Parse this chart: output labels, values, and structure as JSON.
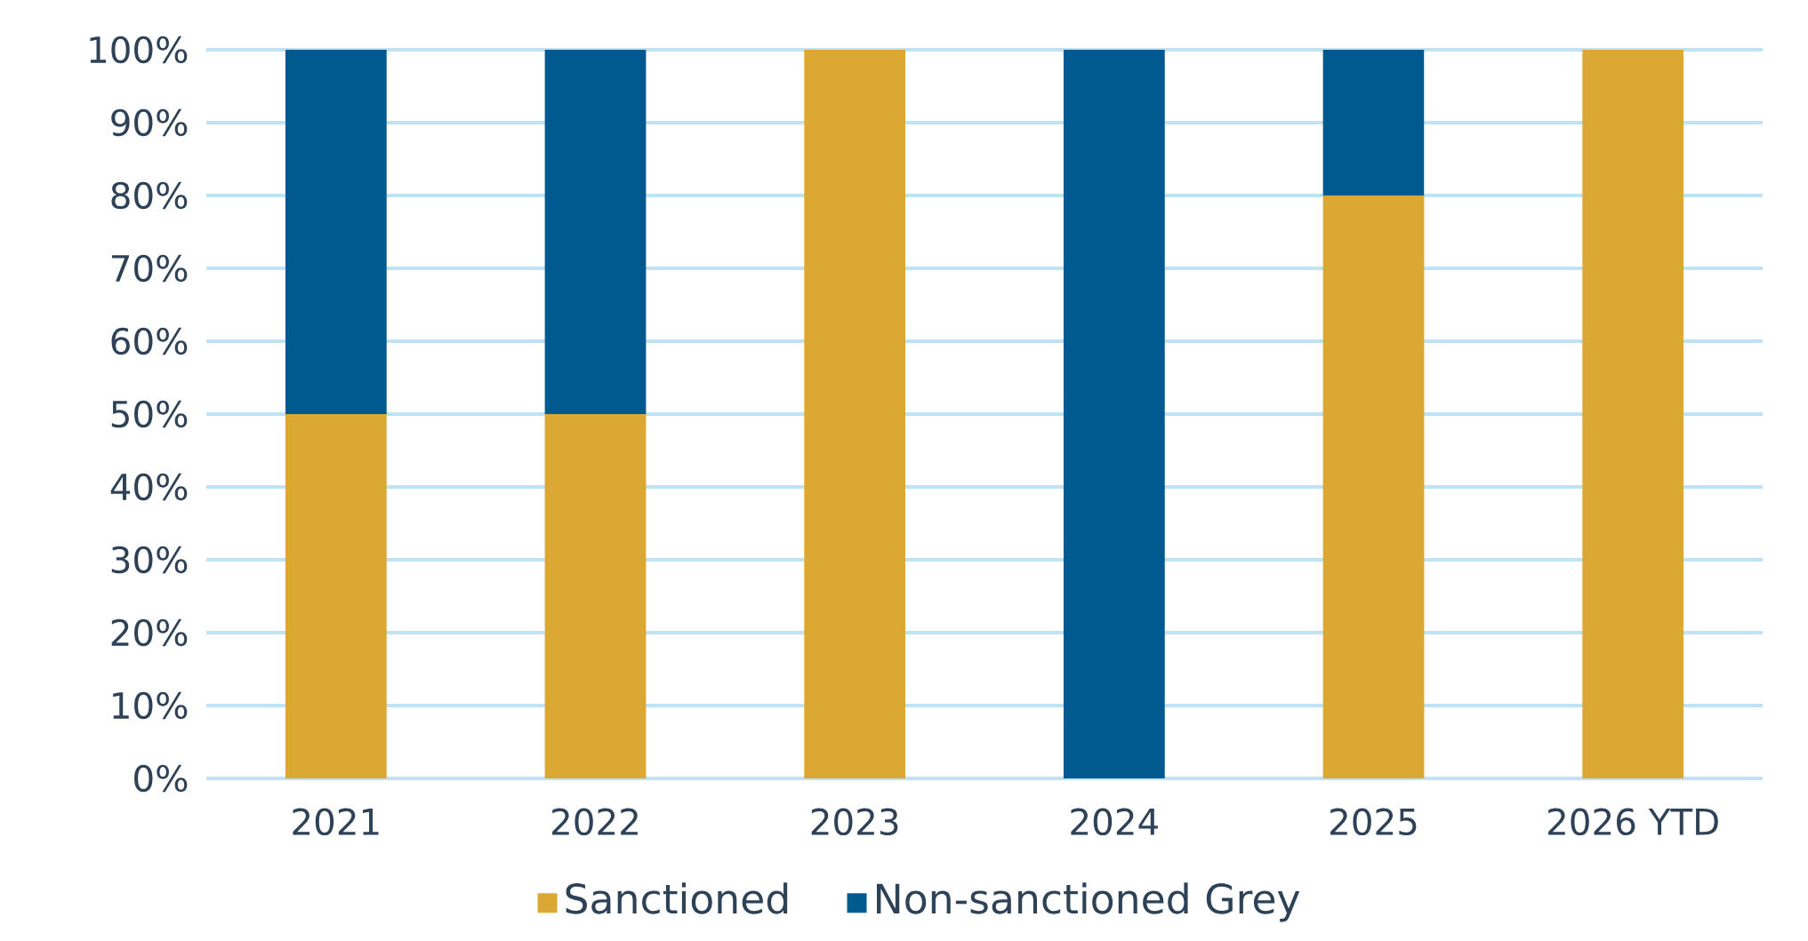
{
  "chart_data": {
    "type": "bar",
    "stacked": true,
    "categories": [
      "2021",
      "2022",
      "2023",
      "2024",
      "2025",
      "2026 YTD"
    ],
    "series": [
      {
        "name": "Sanctioned",
        "color": "#dba833",
        "values": [
          50,
          50,
          100,
          0,
          80,
          100
        ]
      },
      {
        "name": "Non-sanctioned Grey",
        "color": "#005a8f",
        "values": [
          50,
          50,
          0,
          100,
          20,
          0
        ]
      }
    ],
    "ylim": [
      0,
      100
    ],
    "yticks": [
      {
        "value": 0,
        "label": "0%"
      },
      {
        "value": 10,
        "label": "10%"
      },
      {
        "value": 20,
        "label": "20%"
      },
      {
        "value": 30,
        "label": "30%"
      },
      {
        "value": 40,
        "label": "40%"
      },
      {
        "value": 50,
        "label": "50%"
      },
      {
        "value": 60,
        "label": "60%"
      },
      {
        "value": 70,
        "label": "70%"
      },
      {
        "value": 80,
        "label": "80%"
      },
      {
        "value": 90,
        "label": "90%"
      },
      {
        "value": 100,
        "label": "100%"
      }
    ],
    "grid": "y",
    "legend": "bottom"
  }
}
